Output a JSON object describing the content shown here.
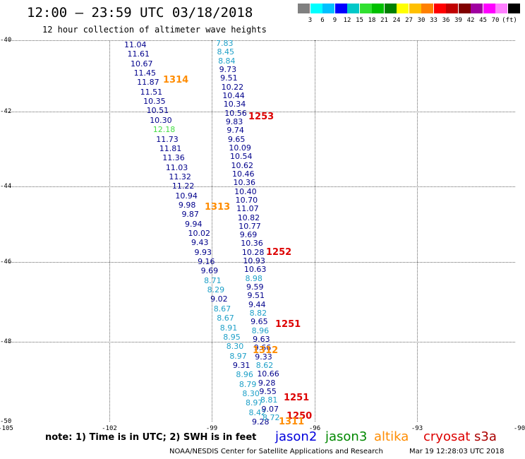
{
  "title": "12:00 – 23:59 UTC 03/18/2018",
  "subtitle": "12 hour collection of altimeter wave heights",
  "colorbar": {
    "unit": "(ft)",
    "colors": [
      "#808080",
      "#00ffff",
      "#00c0ff",
      "#0000ff",
      "#00c8c8",
      "#30e030",
      "#00c000",
      "#008000",
      "#ffff00",
      "#ffc000",
      "#ff8000",
      "#ff0000",
      "#c00000",
      "#800000",
      "#a000a0",
      "#ff00ff",
      "#ff80ff",
      "#000000"
    ],
    "labels": [
      "3",
      "6",
      "9",
      "12",
      "15",
      "18",
      "21",
      "24",
      "27",
      "30",
      "33",
      "36",
      "39",
      "42",
      "45",
      "70"
    ]
  },
  "axes": {
    "lat_labels": [
      "-40",
      "-42",
      "-44",
      "-46",
      "-48",
      "-50"
    ],
    "lon_labels": [
      "-105",
      "-102",
      "-99",
      "-96",
      "-93",
      "-90"
    ]
  },
  "note": "note:  1) Time is in UTC;  2) SWH is in feet",
  "satellites": [
    {
      "name": "jason2",
      "color": "#0000dd"
    },
    {
      "name": "jason3",
      "color": "#008800"
    },
    {
      "name": "altika",
      "color": "#ff8c00"
    },
    {
      "name": "cryosat",
      "color": "#dd0000"
    },
    {
      "name": "s3a",
      "color": "#aa0000"
    }
  ],
  "footer_left": "NOAA/NESDIS Center for Satellite Applications and Research",
  "footer_right": "Mar 19 12:28:03 UTC 2018",
  "track_left": [
    {
      "v": "11.04",
      "c": "#00008b"
    },
    {
      "v": "11.61",
      "c": "#00008b"
    },
    {
      "v": "10.67",
      "c": "#00008b"
    },
    {
      "v": "11.45",
      "c": "#00008b"
    },
    {
      "v": "11.87",
      "c": "#00008b"
    },
    {
      "v": "11.51",
      "c": "#00008b"
    },
    {
      "v": "10.35",
      "c": "#00008b"
    },
    {
      "v": "10.51",
      "c": "#00008b"
    },
    {
      "v": "10.30",
      "c": "#00008b"
    },
    {
      "v": "12.18",
      "c": "#44dd44"
    },
    {
      "v": "11.73",
      "c": "#00008b"
    },
    {
      "v": "11.81",
      "c": "#00008b"
    },
    {
      "v": "11.36",
      "c": "#00008b"
    },
    {
      "v": "11.03",
      "c": "#00008b"
    },
    {
      "v": "11.32",
      "c": "#00008b"
    },
    {
      "v": "11.22",
      "c": "#00008b"
    },
    {
      "v": "10.94",
      "c": "#00008b"
    },
    {
      "v": "9.98",
      "c": "#00008b"
    },
    {
      "v": "9.87",
      "c": "#00008b"
    },
    {
      "v": "9.94",
      "c": "#00008b"
    },
    {
      "v": "10.02",
      "c": "#00008b"
    },
    {
      "v": "9.43",
      "c": "#00008b"
    },
    {
      "v": "9.93",
      "c": "#00008b"
    },
    {
      "v": "9.16",
      "c": "#00008b"
    },
    {
      "v": "9.69",
      "c": "#00008b"
    },
    {
      "v": "8.71",
      "c": "#1ea0c8"
    },
    {
      "v": "8.29",
      "c": "#1ea0c8"
    },
    {
      "v": "9.02",
      "c": "#00008b"
    },
    {
      "v": "8.67",
      "c": "#1ea0c8"
    },
    {
      "v": "8.67",
      "c": "#1ea0c8"
    },
    {
      "v": "8.91",
      "c": "#1ea0c8"
    },
    {
      "v": "8.95",
      "c": "#1ea0c8"
    },
    {
      "v": "8.30",
      "c": "#1ea0c8"
    },
    {
      "v": "8.97",
      "c": "#1ea0c8"
    },
    {
      "v": "9.31",
      "c": "#00008b"
    },
    {
      "v": "8.96",
      "c": "#1ea0c8"
    },
    {
      "v": "8.79",
      "c": "#1ea0c8"
    },
    {
      "v": "8.30",
      "c": "#1ea0c8"
    },
    {
      "v": "8.97",
      "c": "#1ea0c8"
    },
    {
      "v": "8.42",
      "c": "#1ea0c8"
    },
    {
      "v": "9.28",
      "c": "#00008b"
    }
  ],
  "track_right": [
    {
      "v": "7.83",
      "c": "#1ea0c8"
    },
    {
      "v": "8.45",
      "c": "#1ea0c8"
    },
    {
      "v": "8.84",
      "c": "#1ea0c8"
    },
    {
      "v": "9.73",
      "c": "#00008b"
    },
    {
      "v": "9.51",
      "c": "#00008b"
    },
    {
      "v": "10.22",
      "c": "#00008b"
    },
    {
      "v": "10.44",
      "c": "#00008b"
    },
    {
      "v": "10.34",
      "c": "#00008b"
    },
    {
      "v": "10.56",
      "c": "#00008b"
    },
    {
      "v": "9.83",
      "c": "#00008b"
    },
    {
      "v": "9.74",
      "c": "#00008b"
    },
    {
      "v": "9.65",
      "c": "#00008b"
    },
    {
      "v": "10.09",
      "c": "#00008b"
    },
    {
      "v": "10.54",
      "c": "#00008b"
    },
    {
      "v": "10.62",
      "c": "#00008b"
    },
    {
      "v": "10.46",
      "c": "#00008b"
    },
    {
      "v": "10.36",
      "c": "#00008b"
    },
    {
      "v": "10.40",
      "c": "#00008b"
    },
    {
      "v": "10.70",
      "c": "#00008b"
    },
    {
      "v": "11.07",
      "c": "#00008b"
    },
    {
      "v": "10.82",
      "c": "#00008b"
    },
    {
      "v": "10.77",
      "c": "#00008b"
    },
    {
      "v": "9.69",
      "c": "#00008b"
    },
    {
      "v": "10.36",
      "c": "#00008b"
    },
    {
      "v": "10.28",
      "c": "#00008b"
    },
    {
      "v": "10.93",
      "c": "#00008b"
    },
    {
      "v": "10.63",
      "c": "#00008b"
    },
    {
      "v": "8.98",
      "c": "#1ea0c8"
    },
    {
      "v": "9.59",
      "c": "#00008b"
    },
    {
      "v": "9.51",
      "c": "#00008b"
    },
    {
      "v": "9.44",
      "c": "#00008b"
    },
    {
      "v": "8.82",
      "c": "#1ea0c8"
    },
    {
      "v": "9.65",
      "c": "#00008b"
    },
    {
      "v": "8.96",
      "c": "#1ea0c8"
    },
    {
      "v": "9.63",
      "c": "#00008b"
    },
    {
      "v": "9.66",
      "c": "#00008b"
    },
    {
      "v": "9.33",
      "c": "#00008b"
    },
    {
      "v": "8.62",
      "c": "#1ea0c8"
    },
    {
      "v": "10.66",
      "c": "#00008b"
    },
    {
      "v": "9.28",
      "c": "#00008b"
    },
    {
      "v": "9.55",
      "c": "#00008b"
    },
    {
      "v": "8.81",
      "c": "#1ea0c8"
    },
    {
      "v": "9.07",
      "c": "#00008b"
    },
    {
      "v": "8.72",
      "c": "#1ea0c8"
    }
  ],
  "pass_labels": [
    {
      "t": "1314",
      "c": "#ff8c00"
    },
    {
      "t": "1253",
      "c": "#dd0000"
    },
    {
      "t": "1313",
      "c": "#ff8c00"
    },
    {
      "t": "1252",
      "c": "#dd0000"
    },
    {
      "t": "1251",
      "c": "#dd0000"
    },
    {
      "t": "1312",
      "c": "#ff8c00"
    },
    {
      "t": "1251",
      "c": "#dd0000"
    },
    {
      "t": "1250",
      "c": "#dd0000"
    },
    {
      "t": "1311",
      "c": "#ff8c00"
    }
  ]
}
